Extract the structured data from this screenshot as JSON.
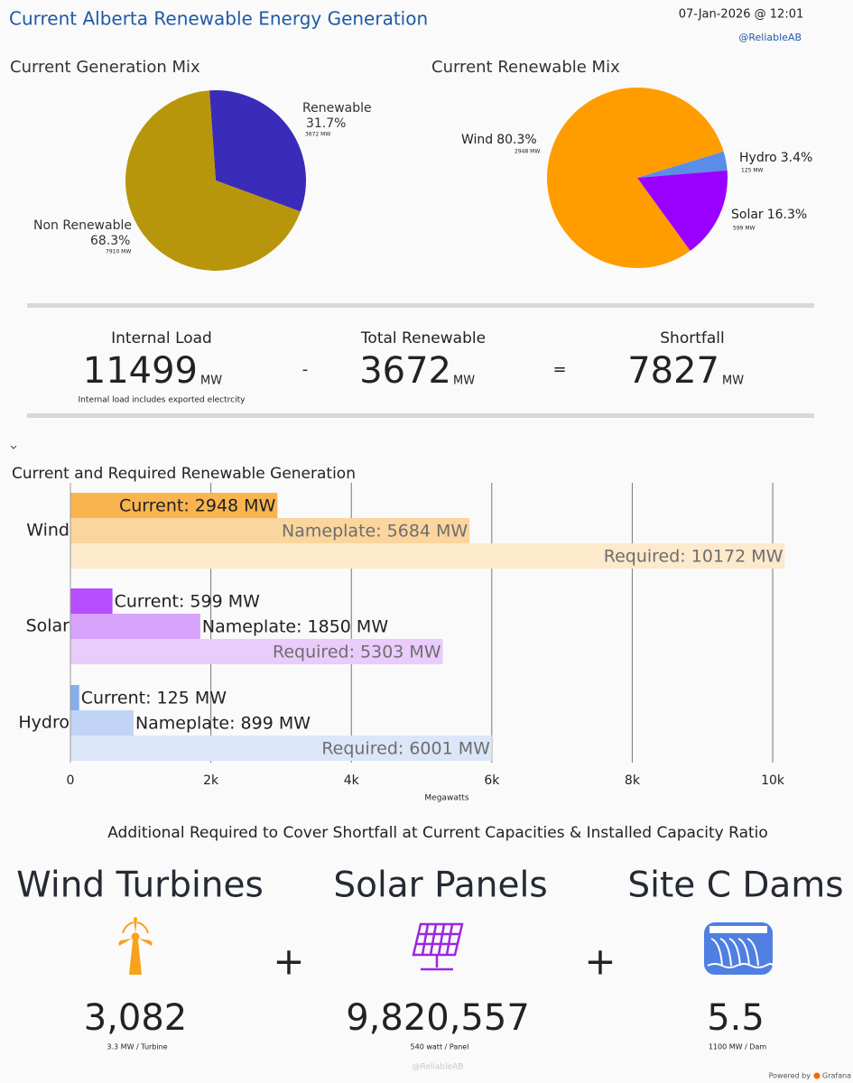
{
  "header": {
    "title": "Current Alberta Renewable Energy Generation",
    "timestamp": "07-Jan-2026 @ 12:01",
    "handle": "@ReliableAB"
  },
  "chart_data": [
    {
      "type": "pie",
      "title": "Current Generation Mix",
      "categories": [
        "Renewable",
        "Non Renewable"
      ],
      "values": [
        31.7,
        68.3
      ],
      "value_labels": [
        "31.7%",
        "68.3%"
      ],
      "sublabels": [
        "3672 MW",
        "7910 MW"
      ],
      "colors": [
        "#3a2cb8",
        "#b8960c"
      ]
    },
    {
      "type": "pie",
      "title": "Current Renewable Mix",
      "categories": [
        "Wind",
        "Hydro",
        "Solar"
      ],
      "values": [
        80.3,
        3.4,
        16.3
      ],
      "value_labels": [
        "80.3%",
        "3.4%",
        "16.3%"
      ],
      "sublabels": [
        "2948 MW",
        "125 MW",
        "599 MW"
      ],
      "colors": [
        "#ff9c00",
        "#5a8de8",
        "#9a00ff"
      ]
    },
    {
      "type": "bar",
      "orientation": "horizontal",
      "title": "Current and Required Renewable Generation",
      "categories": [
        "Wind",
        "Solar",
        "Hydro"
      ],
      "series": [
        {
          "values": [
            2948,
            599,
            125
          ],
          "value_labels": [
            "Current: 2948 MW",
            "Current: 599 MW",
            "Current: 125 MW"
          ],
          "colors": [
            "#f9b450",
            "#b64dff",
            "#86aeea"
          ]
        },
        {
          "values": [
            5684,
            1850,
            899
          ],
          "value_labels": [
            "Nameplate: 5684 MW",
            "Nameplate: 1850 MW",
            "Nameplate: 899 MW"
          ],
          "colors": [
            "#fbd59e",
            "#d8a3fb",
            "#c2d4f5"
          ]
        },
        {
          "values": [
            10172,
            5303,
            6001
          ],
          "value_labels": [
            "Required: 10172 MW",
            "Required: 5303 MW",
            "Required: 6001 MW"
          ],
          "colors": [
            "#fde9cc",
            "#e9ccfb",
            "#dbe6f8"
          ]
        }
      ],
      "xlim": [
        0,
        10200
      ],
      "xticks": [
        0,
        {
          "value": 2000,
          "label": "2k"
        },
        {
          "value": 4000,
          "label": "4k"
        },
        {
          "value": 6000,
          "label": "6k"
        },
        {
          "value": 8000,
          "label": "8k"
        },
        {
          "value": 10000,
          "label": "10k"
        }
      ],
      "xlabel": "Megawatts",
      "grid": true
    }
  ],
  "stats": {
    "items": [
      {
        "label": "Internal Load",
        "value": "11499",
        "unit": "MW"
      },
      {
        "label": "Total Renewable",
        "value": "3672",
        "unit": "MW"
      },
      {
        "label": "Shortfall",
        "value": "7827",
        "unit": "MW"
      }
    ],
    "note": "Internal load includes exported electrcity",
    "operators": [
      "-",
      "="
    ]
  },
  "requirements": {
    "title": "Additional Required to Cover Shortfall at Current Capacities & Installed Capacity Ratio",
    "items": [
      {
        "name": "Wind Turbines",
        "value": "3,082",
        "note": "3.3 MW / Turbine"
      },
      {
        "name": "Solar Panels",
        "value": "9,820,557",
        "note": "540 watt / Panel"
      },
      {
        "name": "Site C Dams",
        "value": "5.5",
        "note": "1100 MW / Dam"
      }
    ],
    "operators": [
      "+",
      "+"
    ]
  },
  "footer": {
    "handle": "@ReliableAB",
    "powered": "Powered by",
    "brand": "Grafana"
  }
}
